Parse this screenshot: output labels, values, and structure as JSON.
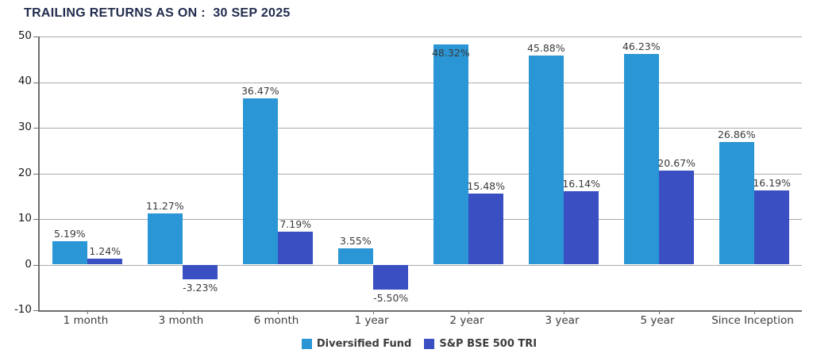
{
  "title": "TRAILING RETURNS AS ON :  30 SEP 2025",
  "chart_data": {
    "type": "bar",
    "categories": [
      "1 month",
      "3 month",
      "6 month",
      "1 year",
      "2 year",
      "3 year",
      "5 year",
      "Since Inception"
    ],
    "series": [
      {
        "name": "Diversified Fund",
        "color": "#2b96d5",
        "values": [
          5.19,
          11.27,
          36.47,
          3.55,
          48.32,
          45.88,
          46.23,
          26.86
        ],
        "labels": [
          "5.19%",
          "11.27%",
          "36.47%",
          "3.55%",
          "48.32%",
          "45.88%",
          "46.23%",
          "26.86%"
        ]
      },
      {
        "name": "S&P BSE 500 TRI",
        "color": "#3a50c2",
        "values": [
          1.24,
          -3.23,
          7.19,
          -5.5,
          15.48,
          16.14,
          20.67,
          16.19
        ],
        "labels": [
          "1.24%",
          "-3.23%",
          "7.19%",
          "-5.50%",
          "15.48%",
          "16.14%",
          "20.67%",
          "16.19%"
        ]
      }
    ],
    "ylim": [
      -10,
      50
    ],
    "yticks": [
      50,
      40,
      30,
      20,
      10,
      0,
      -10
    ],
    "grid": true,
    "legend_position": "bottom",
    "title": "TRAILING RETURNS AS ON :  30 SEP 2025"
  },
  "colors": {
    "title": "#222c4e",
    "gridline": "#aaaaaa",
    "axis": "#6e6e6e",
    "label_text": "#3a3a3a"
  }
}
